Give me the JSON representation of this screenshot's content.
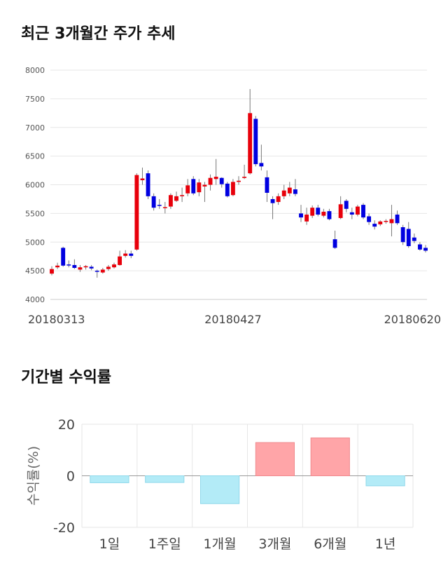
{
  "sections": {
    "price_title": "최근 3개월간 주가 추세",
    "returns_title": "기간별 수익률"
  },
  "colors": {
    "up": "#e8000b",
    "down": "#0000e0",
    "positive_bar": "#ffa5a8",
    "negative_bar": "#b3ebf7",
    "grid": "#e6e6e6"
  },
  "chart_data": [
    {
      "type": "candlestick",
      "title": "최근 3개월간 주가 추세",
      "ylim": [
        4000,
        8000
      ],
      "y_ticks": [
        4000,
        4500,
        5000,
        5500,
        6000,
        6500,
        7000,
        7500,
        8000
      ],
      "x_tick_labels": [
        {
          "index": 0,
          "label": "20180313"
        },
        {
          "index": 32,
          "label": "20180427"
        },
        {
          "index": 66,
          "label": "20180620"
        }
      ],
      "candles": [
        [
          4450,
          4530,
          4420,
          4580
        ],
        [
          4560,
          4590,
          4530,
          4640
        ],
        [
          4900,
          4590,
          4570,
          4920
        ],
        [
          4610,
          4600,
          4560,
          4680
        ],
        [
          4600,
          4550,
          4530,
          4700
        ],
        [
          4520,
          4560,
          4480,
          4600
        ],
        [
          4560,
          4580,
          4520,
          4600
        ],
        [
          4570,
          4540,
          4510,
          4600
        ],
        [
          4500,
          4490,
          4380,
          4520
        ],
        [
          4470,
          4520,
          4450,
          4550
        ],
        [
          4530,
          4570,
          4500,
          4600
        ],
        [
          4560,
          4610,
          4540,
          4640
        ],
        [
          4600,
          4750,
          4590,
          4850
        ],
        [
          4760,
          4800,
          4730,
          4860
        ],
        [
          4800,
          4760,
          4720,
          4850
        ],
        [
          4870,
          6170,
          4850,
          6200
        ],
        [
          6080,
          6110,
          6000,
          6300
        ],
        [
          6200,
          5800,
          5750,
          6250
        ],
        [
          5800,
          5600,
          5550,
          5850
        ],
        [
          5650,
          5640,
          5580,
          5750
        ],
        [
          5600,
          5610,
          5500,
          5700
        ],
        [
          5620,
          5820,
          5580,
          5850
        ],
        [
          5720,
          5800,
          5700,
          5880
        ],
        [
          5800,
          5820,
          5700,
          5950
        ],
        [
          5850,
          5990,
          5800,
          6100
        ],
        [
          6100,
          5850,
          5820,
          6150
        ],
        [
          5870,
          6040,
          5800,
          6100
        ],
        [
          5970,
          6000,
          5700,
          6050
        ],
        [
          6000,
          6120,
          5900,
          6180
        ],
        [
          6100,
          6140,
          6000,
          6450
        ],
        [
          6120,
          6010,
          5950,
          6130
        ],
        [
          6020,
          5800,
          5780,
          6050
        ],
        [
          5820,
          6050,
          5800,
          6100
        ],
        [
          6050,
          6070,
          6000,
          6150
        ],
        [
          6120,
          6140,
          6100,
          6350
        ],
        [
          6200,
          7250,
          6180,
          7670
        ],
        [
          7150,
          6360,
          6320,
          7200
        ],
        [
          6380,
          6320,
          6250,
          6700
        ],
        [
          6130,
          5860,
          5700,
          6250
        ],
        [
          5750,
          5680,
          5400,
          5800
        ],
        [
          5700,
          5800,
          5650,
          5850
        ],
        [
          5800,
          5900,
          5750,
          6000
        ],
        [
          5850,
          5950,
          5800,
          6050
        ],
        [
          5920,
          5840,
          5800,
          6100
        ],
        [
          5500,
          5430,
          5350,
          5650
        ],
        [
          5360,
          5480,
          5300,
          5600
        ],
        [
          5460,
          5600,
          5420,
          5640
        ],
        [
          5600,
          5480,
          5450,
          5650
        ],
        [
          5460,
          5530,
          5430,
          5580
        ],
        [
          5540,
          5400,
          5380,
          5580
        ],
        [
          5050,
          4900,
          4880,
          5200
        ],
        [
          5420,
          5660,
          5400,
          5800
        ],
        [
          5720,
          5580,
          5520,
          5750
        ],
        [
          5520,
          5480,
          5400,
          5600
        ],
        [
          5480,
          5620,
          5450,
          5650
        ],
        [
          5650,
          5430,
          5400,
          5680
        ],
        [
          5450,
          5350,
          5300,
          5500
        ],
        [
          5320,
          5270,
          5220,
          5380
        ],
        [
          5310,
          5360,
          5280,
          5380
        ],
        [
          5360,
          5370,
          5320,
          5400
        ],
        [
          5330,
          5400,
          5100,
          5650
        ],
        [
          5480,
          5330,
          5300,
          5550
        ],
        [
          5260,
          5000,
          4950,
          5300
        ],
        [
          5230,
          4930,
          4900,
          5350
        ],
        [
          5080,
          5020,
          4980,
          5150
        ],
        [
          4960,
          4870,
          4850,
          5000
        ],
        [
          4900,
          4850,
          4820,
          4950
        ]
      ]
    },
    {
      "type": "bar",
      "ylabel": "수익률(%)",
      "ylim": [
        -20,
        20
      ],
      "y_ticks": [
        20,
        0,
        -20
      ],
      "categories": [
        "1일",
        "1주일",
        "1개월",
        "3개월",
        "6개월",
        "1년"
      ],
      "values": [
        -2.7,
        -2.6,
        -10.8,
        12.9,
        14.7,
        -3.9
      ]
    }
  ]
}
